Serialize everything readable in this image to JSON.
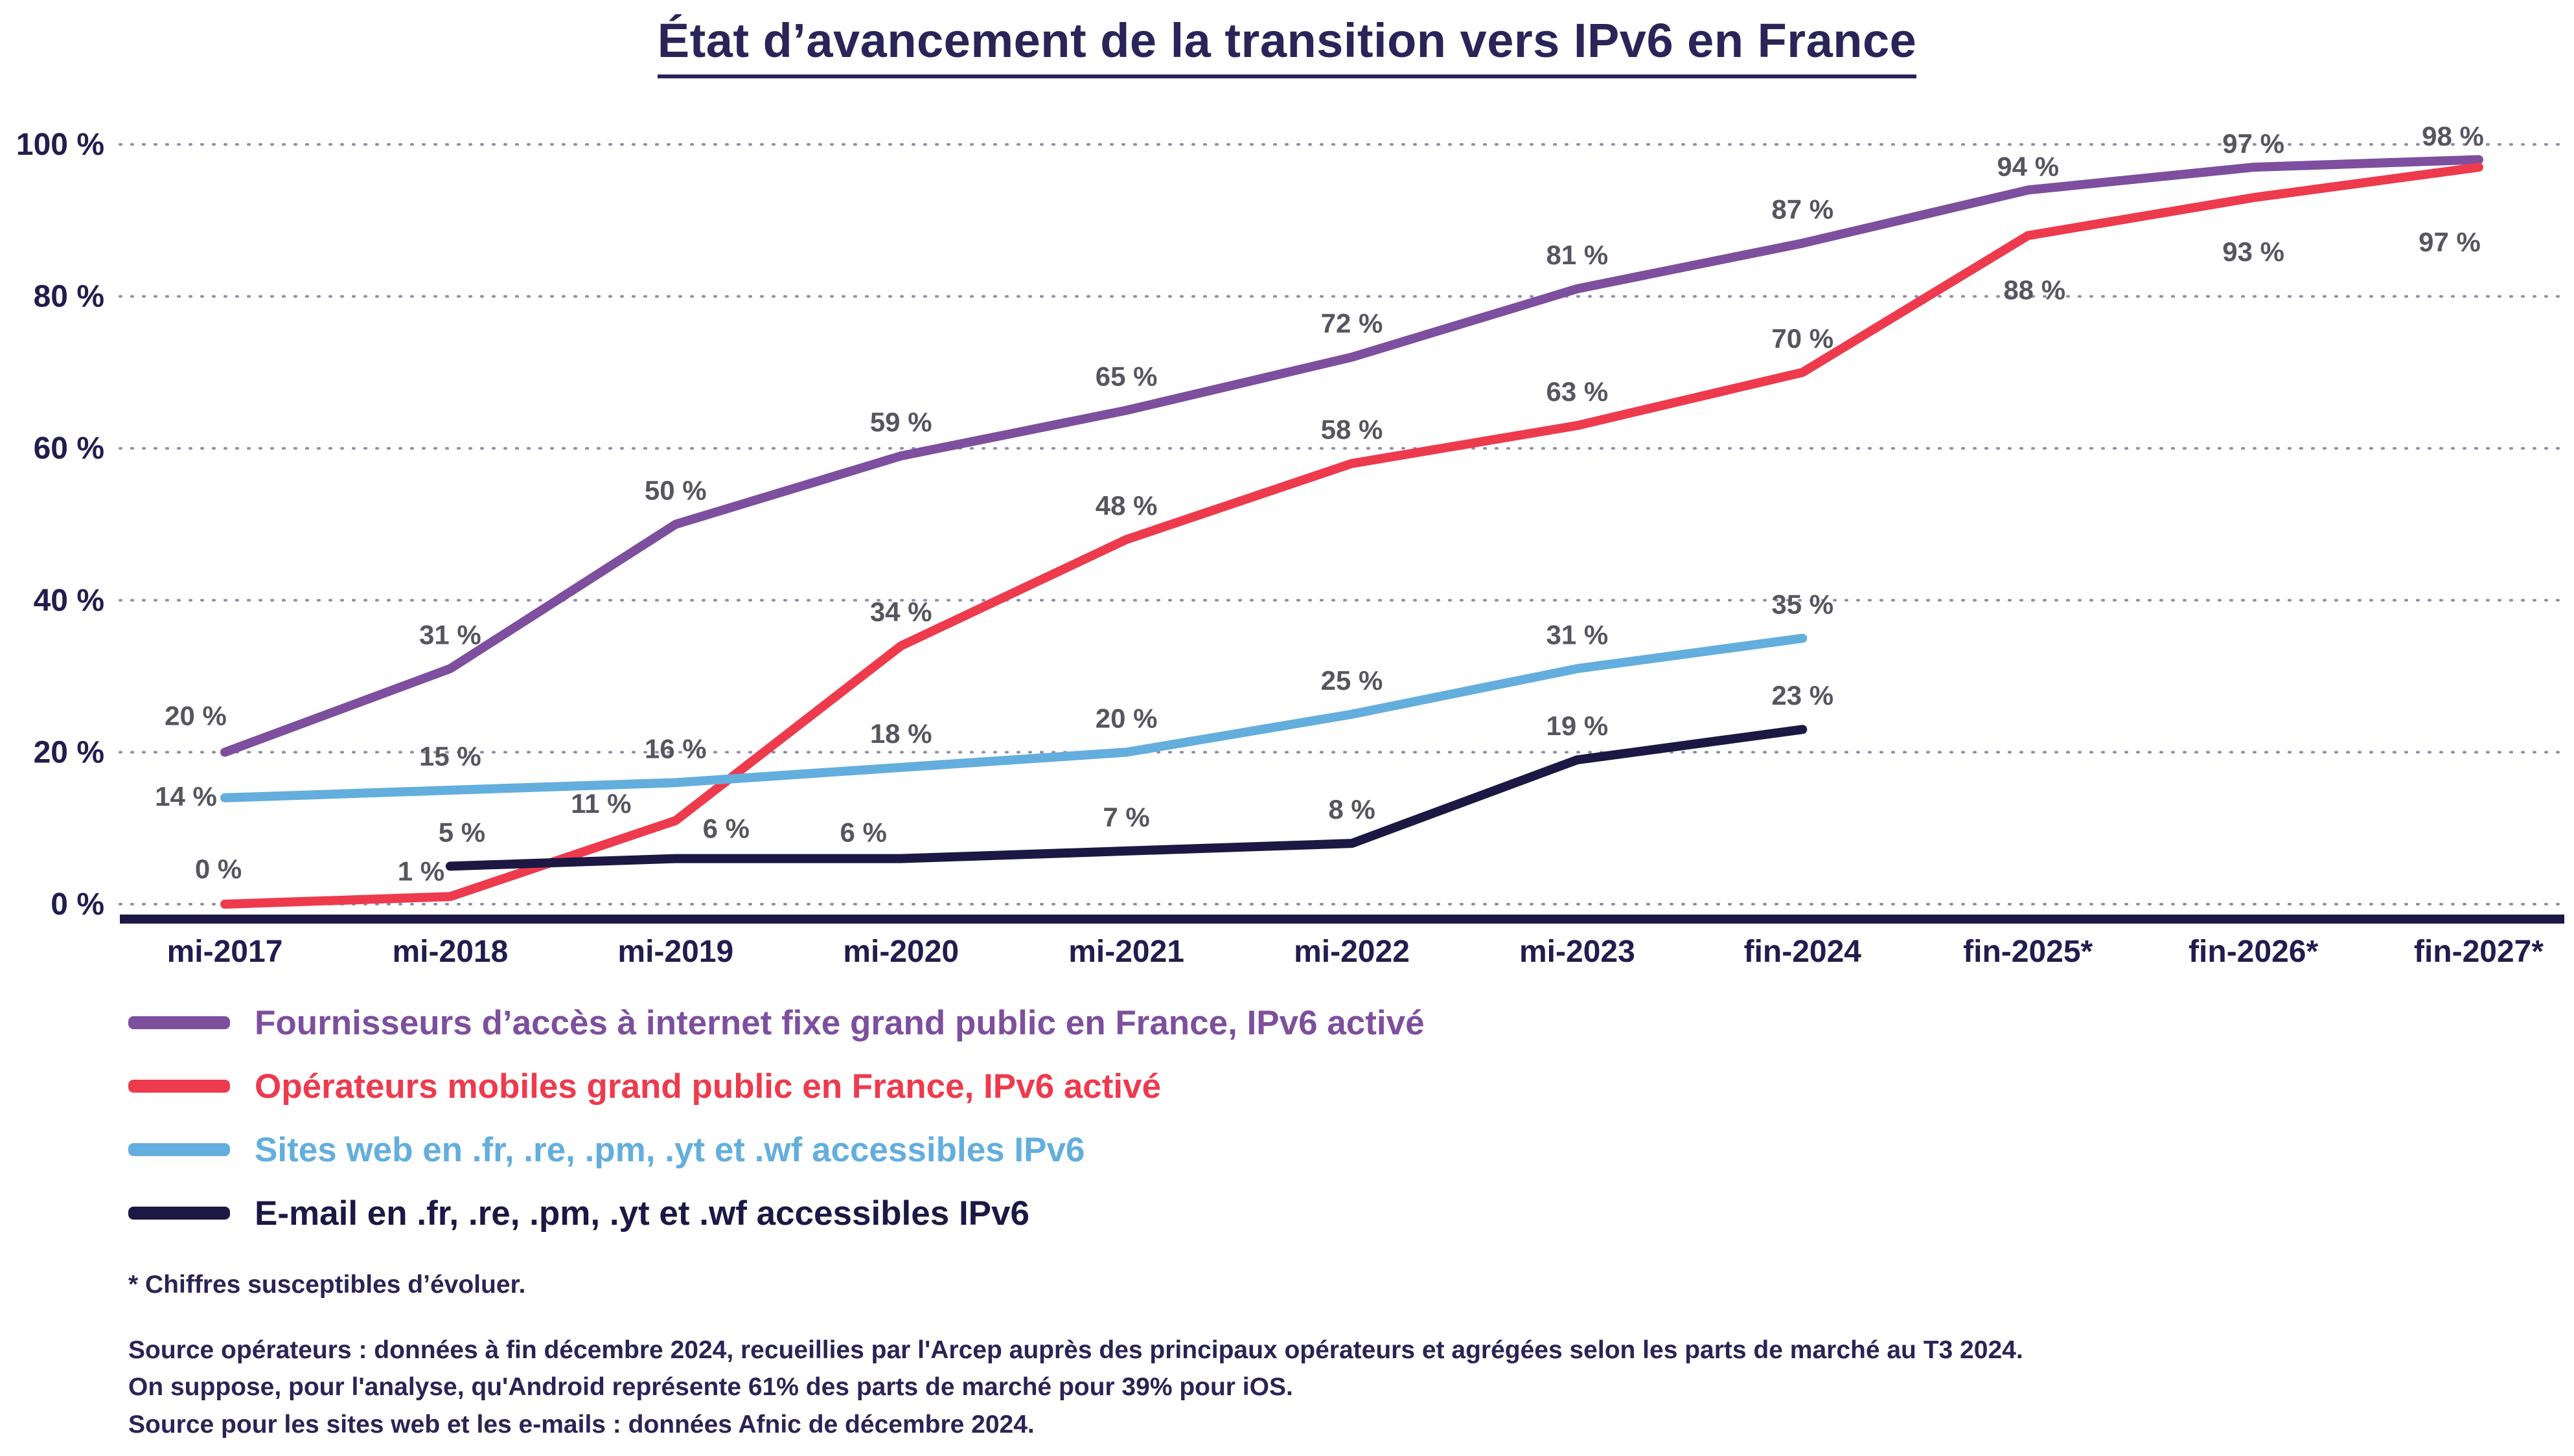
{
  "title": "État d’avancement de la transition vers IPv6 en France",
  "chart_data": {
    "type": "line",
    "title": "État d’avancement de la transition vers IPv6 en France",
    "categories": [
      "mi-2017",
      "mi-2018",
      "mi-2019",
      "mi-2020",
      "mi-2021",
      "mi-2022",
      "mi-2023",
      "fin-2024",
      "fin-2025*",
      "fin-2026*",
      "fin-2027*"
    ],
    "ylim": [
      0,
      100
    ],
    "y_tick_values": [
      0,
      20,
      40,
      60,
      80,
      100
    ],
    "y_tick_labels": [
      "0 %",
      "20 %",
      "40 %",
      "60 %",
      "80 %",
      "100 %"
    ],
    "grid": "dotted-horizontal",
    "legend_position": "bottom-left",
    "axis_color": "#1c1843",
    "grid_color": "#8f8da9",
    "tick_color": "#221d4f",
    "data_label_color": "#57555f",
    "series": [
      {
        "name": "Fournisseurs d’accès à internet fixe grand public en France, IPv6 activé",
        "color": "#7d4f9e",
        "start_index": 0,
        "values": [
          20,
          31,
          50,
          59,
          65,
          72,
          81,
          87,
          94,
          97,
          98
        ],
        "labels": [
          "20 %",
          "31 %",
          "50 %",
          "59 %",
          "65 %",
          "72 %",
          "81 %",
          "87 %",
          "94 %",
          "97 %",
          "98 %"
        ],
        "label_offsets": {
          "0": [
            -45,
            -42
          ],
          "8": [
            0,
            -22
          ],
          "9": [
            0,
            -22
          ],
          "10": [
            -40,
            -22
          ]
        }
      },
      {
        "name": "Opérateurs mobiles grand public en France, IPv6 activé",
        "color": "#ee3a4d",
        "start_index": 0,
        "values": [
          0,
          1,
          11,
          34,
          48,
          58,
          63,
          70,
          88,
          93,
          97
        ],
        "labels": [
          "0 %",
          "1 %",
          "11 %",
          "34 %",
          "48 %",
          "58 %",
          "63 %",
          "70 %",
          "88 %",
          "93 %",
          "97 %"
        ],
        "label_offsets": {
          "0": [
            -10,
            -40
          ],
          "1": [
            -45,
            -25
          ],
          "2": [
            -115,
            -12
          ],
          "8": [
            10,
            98
          ],
          "9": [
            0,
            98
          ],
          "10": [
            -45,
            130
          ]
        }
      },
      {
        "name": "Sites web en .fr, .re, .pm, .yt et .wf accessibles IPv6",
        "color": "#63aedd",
        "start_index": 0,
        "values": [
          14,
          15,
          16,
          18,
          20,
          25,
          31,
          35
        ],
        "labels": [
          "14 %",
          "15 %",
          "16 %",
          "18 %",
          "20 %",
          "25 %",
          "31 %",
          "35 %"
        ],
        "label_offsets": {
          "0": [
            -60,
            12
          ]
        }
      },
      {
        "name": "E-mail en .fr, .re, .pm, .yt et .wf accessibles IPv6",
        "color": "#1c1843",
        "start_index": 1,
        "values": [
          5,
          6,
          6,
          7,
          8,
          19,
          23
        ],
        "labels": [
          "5 %",
          "6 %",
          "6 %",
          "7 %",
          "8 %",
          "19 %",
          "23 %"
        ],
        "label_offsets": {
          "0": [
            18,
            -38
          ],
          "1": [
            78,
            -32
          ],
          "2": [
            -58,
            -26
          ]
        }
      }
    ]
  },
  "footnote": "* Chiffres susceptibles d’évoluer.",
  "sources": [
    "Source opérateurs : données à fin décembre 2024, recueillies par l'Arcep auprès des principaux opérateurs et agrégées selon les parts de marché au T3 2024.",
    "On suppose, pour l'analyse, qu'Android représente 61% des parts de marché pour 39% pour iOS.",
    "Source pour les sites web et les e-mails : données Afnic de décembre 2024."
  ]
}
